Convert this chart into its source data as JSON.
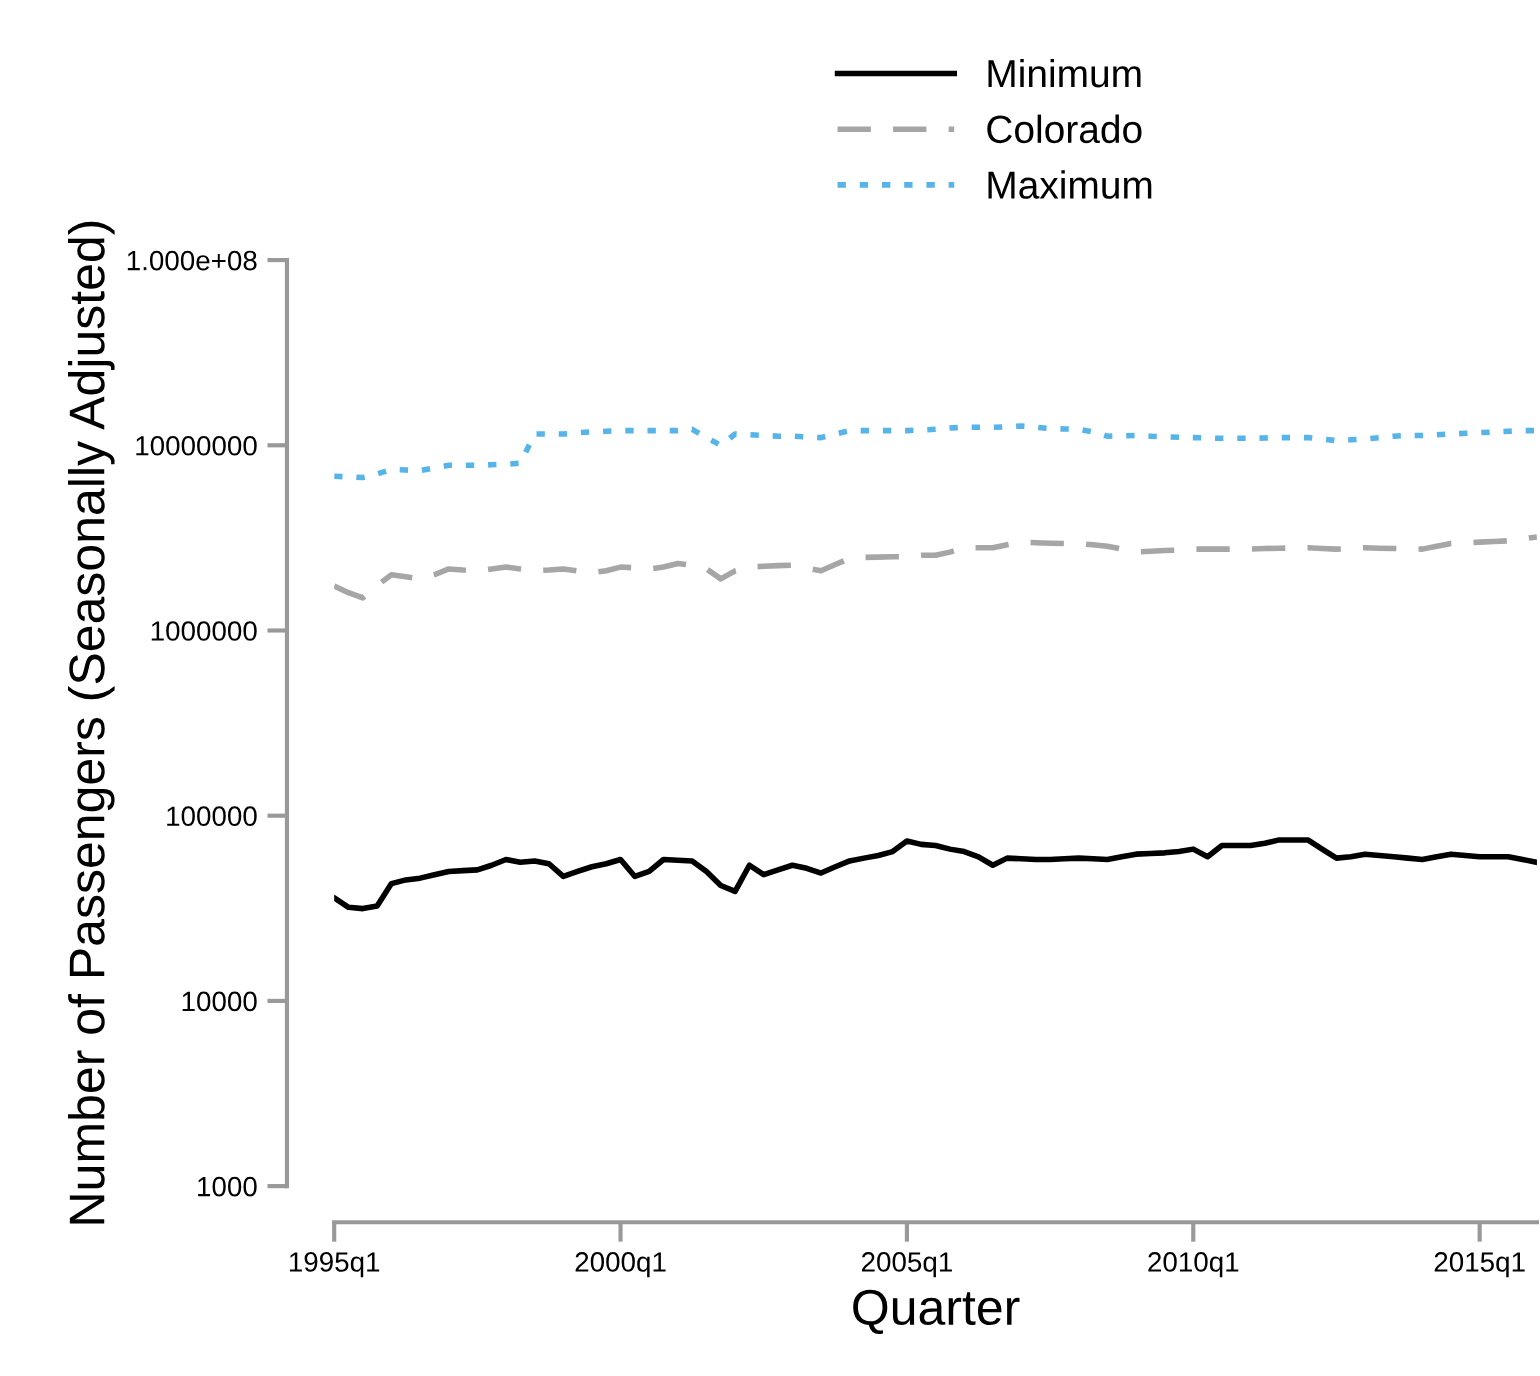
{
  "chart_data": {
    "type": "line",
    "xlabel": "Quarter",
    "ylabel": "Number of Passengers (Seasonally Adjusted)",
    "log": "y",
    "legend": "top",
    "grid": false,
    "categories": [
      "1995q1",
      null,
      null,
      null,
      null,
      null,
      null,
      null,
      null,
      null,
      null,
      null,
      null,
      null,
      null,
      null,
      null,
      null,
      null,
      null,
      "2000q1",
      null,
      null,
      null,
      null,
      null,
      null,
      null,
      null,
      null,
      null,
      null,
      null,
      null,
      null,
      null,
      null,
      null,
      null,
      null,
      "2005q1",
      null,
      null,
      null,
      null,
      null,
      null,
      null,
      null,
      null,
      null,
      null,
      null,
      null,
      null,
      null,
      null,
      null,
      null,
      null,
      "2010q1",
      null,
      null,
      null,
      null,
      null,
      null,
      null,
      null,
      null,
      null,
      null,
      null,
      null,
      null,
      null,
      null,
      null,
      null,
      null,
      "2015q1",
      null,
      null,
      null,
      null
    ],
    "ylim": [
      1000,
      100000000
    ],
    "yticks": [
      1000,
      10000,
      100000,
      1000000,
      10000000,
      {
        "value": 100000000,
        "label": "1.000e+08"
      }
    ],
    "series": [
      {
        "name": "Minimum",
        "color": "#000000",
        "line_style": "solid",
        "values": [
          36000,
          32000,
          31500,
          32500,
          43000,
          45000,
          46000,
          48000,
          50000,
          50500,
          51000,
          54000,
          58000,
          56000,
          57000,
          55000,
          47000,
          50000,
          53000,
          55000,
          58000,
          47000,
          50000,
          58000,
          57500,
          57000,
          50000,
          42000,
          39000,
          54000,
          48000,
          51000,
          54000,
          52000,
          49000,
          53000,
          57000,
          59000,
          61000,
          64000,
          73000,
          70000,
          69000,
          66000,
          64000,
          60000,
          54000,
          59000,
          58500,
          58000,
          58000,
          58500,
          59000,
          58500,
          58000,
          60000,
          62000,
          62500,
          63000,
          64000,
          66000,
          60000,
          69000,
          69000,
          69000,
          71000,
          74000,
          74000,
          74000,
          66000,
          59000,
          60000,
          62000,
          61000,
          60000,
          59000,
          58000,
          60000,
          62000,
          61000,
          60000,
          60000,
          60000,
          58000,
          56000
        ]
      },
      {
        "name": "Colorado",
        "color": "#a6a6a6",
        "line_style": "dashed",
        "values": [
          1740000,
          1600000,
          1500000,
          1750000,
          2000000,
          1950000,
          1900000,
          2000000,
          2150000,
          2120000,
          2100000,
          2150000,
          2200000,
          2150000,
          2100000,
          2120000,
          2150000,
          2100000,
          2050000,
          2100000,
          2200000,
          2180000,
          2150000,
          2200000,
          2300000,
          2250000,
          2150000,
          1900000,
          2100000,
          2200000,
          2220000,
          2240000,
          2250000,
          2170000,
          2100000,
          2270000,
          2450000,
          2480000,
          2490000,
          2500000,
          2500000,
          2550000,
          2550000,
          2650000,
          2800000,
          2800000,
          2800000,
          2900000,
          3000000,
          2980000,
          2960000,
          2950000,
          2950000,
          2900000,
          2850000,
          2750000,
          2650000,
          2680000,
          2700000,
          2720000,
          2750000,
          2750000,
          2750000,
          2750000,
          2750000,
          2770000,
          2780000,
          2790000,
          2800000,
          2770000,
          2750000,
          2770000,
          2800000,
          2780000,
          2770000,
          2760000,
          2750000,
          2850000,
          2950000,
          2970000,
          3000000,
          3020000,
          3050000,
          3120000,
          3200000
        ]
      },
      {
        "name": "Maximum",
        "color": "#56b4e9",
        "line_style": "dotted",
        "values": [
          6800000,
          6750000,
          6700000,
          7000000,
          7400000,
          7350000,
          7300000,
          7550000,
          7800000,
          7800000,
          7800000,
          7850000,
          7900000,
          8000000,
          11500000,
          11500000,
          11500000,
          11700000,
          11800000,
          11900000,
          12000000,
          12000000,
          12000000,
          12000000,
          12000000,
          12200000,
          11000000,
          10000000,
          11500000,
          11400000,
          11300000,
          11200000,
          11200000,
          11100000,
          11000000,
          11500000,
          12000000,
          12000000,
          12000000,
          12000000,
          12000000,
          12100000,
          12200000,
          12400000,
          12500000,
          12500000,
          12500000,
          12600000,
          12700000,
          12500000,
          12300000,
          12250000,
          12200000,
          11800000,
          11200000,
          11250000,
          11300000,
          11200000,
          11100000,
          11050000,
          11000000,
          10950000,
          10900000,
          10900000,
          10900000,
          10950000,
          11000000,
          11000000,
          11000000,
          10800000,
          10600000,
          10700000,
          10800000,
          11000000,
          11200000,
          11300000,
          11300000,
          11400000,
          11500000,
          11600000,
          11700000,
          11800000,
          11900000,
          12000000,
          12000000
        ]
      }
    ]
  }
}
